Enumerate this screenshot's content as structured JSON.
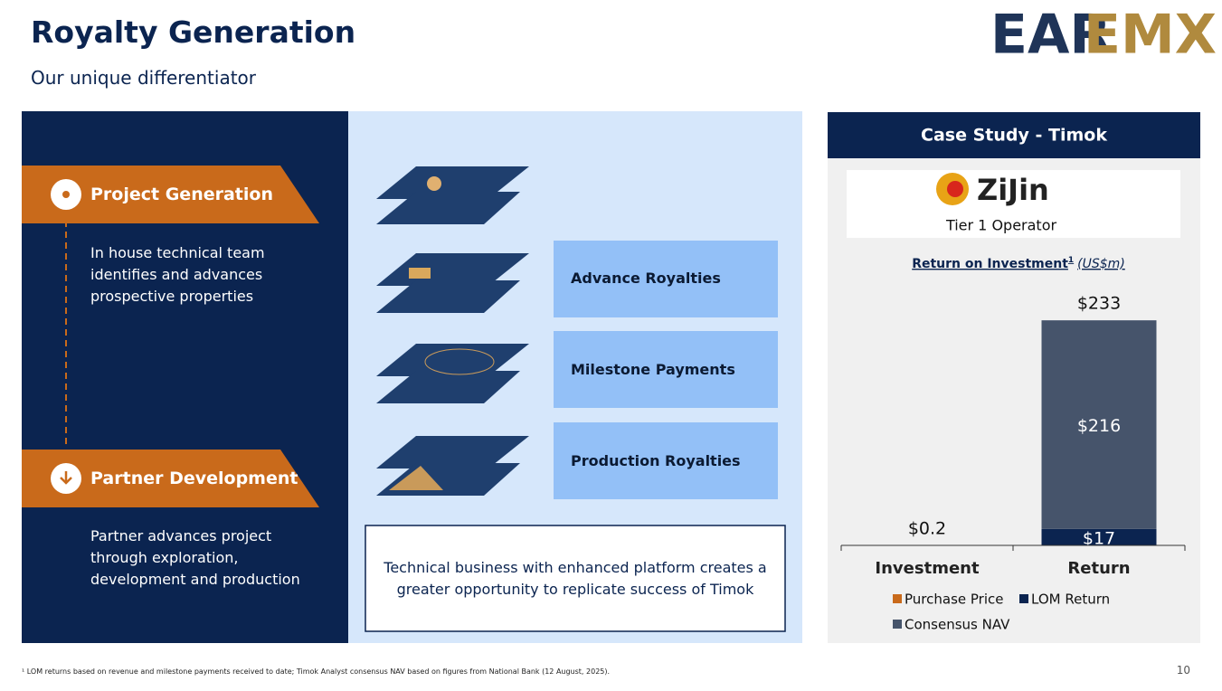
{
  "header": {
    "title": "Royalty Generation",
    "subtitle": "Our unique differentiator",
    "logo": [
      "EAR",
      "EMX"
    ]
  },
  "steps": [
    {
      "title": "Project Generation",
      "text": "In house technical team identifies and advances prospective properties"
    },
    {
      "title": "Partner Development",
      "text": "Partner advances project through exploration, development and production"
    }
  ],
  "revenue_streams": [
    "Advance Royalties",
    "Milestone Payments",
    "Production Royalties"
  ],
  "summary": "Technical business with enhanced platform creates a greater opportunity to replicate success of Timok",
  "case_study": {
    "title": "Case Study - Timok",
    "operator_logo": "ZiJin",
    "operator": "Tier 1 Operator"
  },
  "chart_data": {
    "type": "bar",
    "stacked": true,
    "title": "Return on Investment",
    "title_note": "1",
    "subtitle": "(US$m)",
    "categories": [
      "Investment",
      "Return"
    ],
    "series": [
      {
        "name": "Purchase Price",
        "color": "#c96a1b",
        "values": [
          0.2,
          null
        ],
        "value_labels": [
          "$0.2",
          null
        ]
      },
      {
        "name": "LOM Return",
        "color": "#0b2450",
        "values": [
          null,
          17
        ],
        "value_labels": [
          null,
          "$17"
        ]
      },
      {
        "name": "Consensus NAV",
        "color": "#46546b",
        "values": [
          null,
          216
        ],
        "value_labels": [
          null,
          "$216"
        ]
      }
    ],
    "totals": [
      null,
      233
    ],
    "total_labels": [
      null,
      "$233"
    ],
    "ylim": [
      0,
      250
    ]
  },
  "footnote": "¹ LOM returns based on revenue and milestone payments received to date; Timok Analyst consensus NAV based on figures from National Bank (12 August, 2025).",
  "page_number": 10
}
